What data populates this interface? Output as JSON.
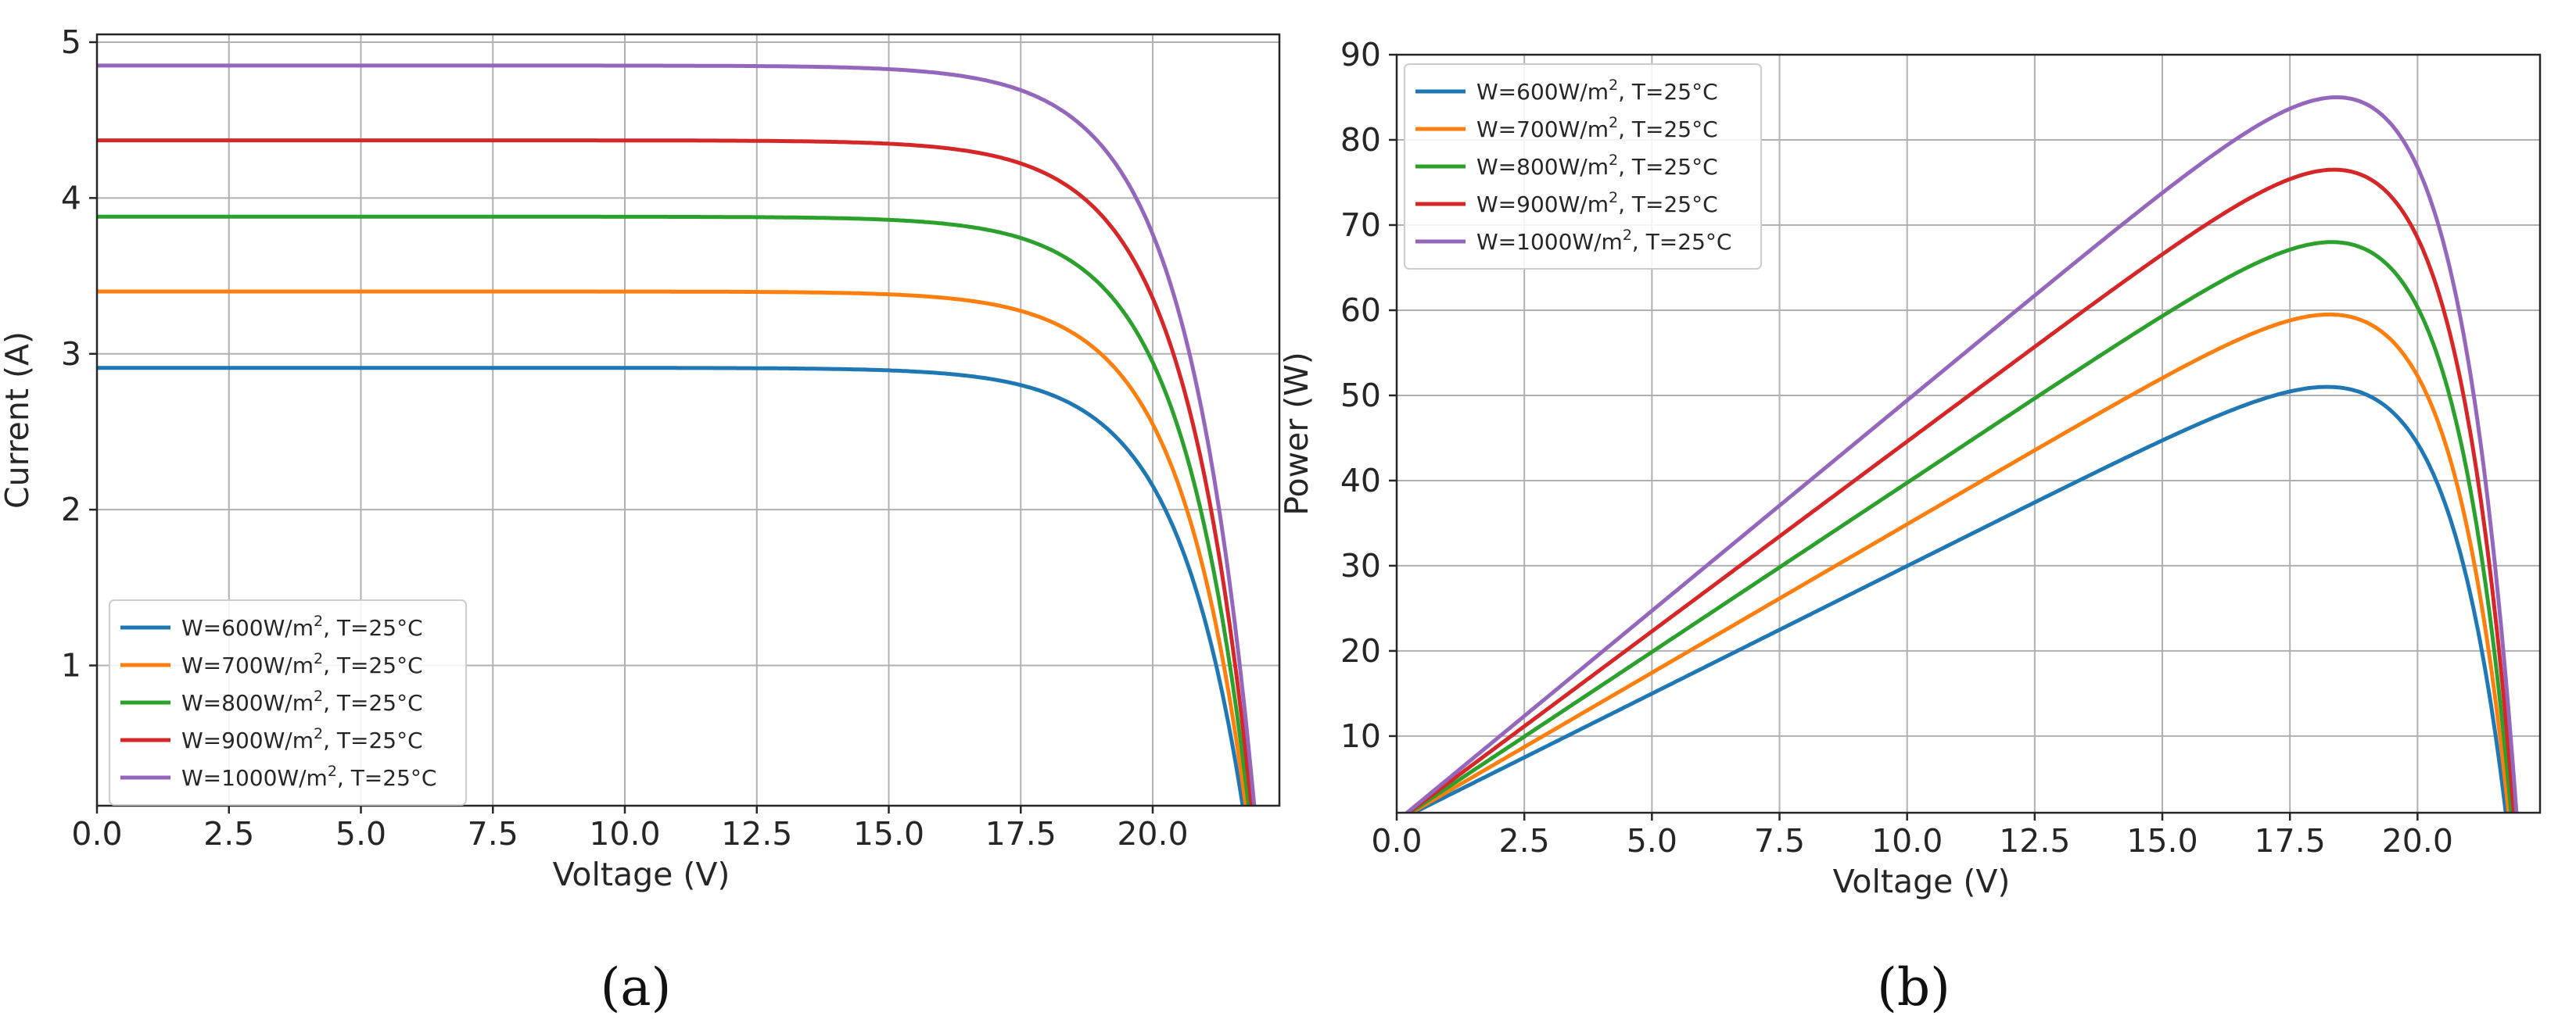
{
  "legend": {
    "unit_prefix": "W=",
    "unit_w": "W/m",
    "unit_sup": "2",
    "temp_suffix": ", T=25°C"
  },
  "chart_data": [
    {
      "type": "line",
      "panel_label": "(a)",
      "title": "",
      "xlabel": "Voltage (V)",
      "ylabel": "Current (A)",
      "xlim": [
        0,
        22.4
      ],
      "ylim": [
        0.1,
        5.05
      ],
      "grid": true,
      "legend_position": "lower-left",
      "xticks": [
        "0.0",
        "2.5",
        "5.0",
        "7.5",
        "10.0",
        "12.5",
        "15.0",
        "17.5",
        "20.0"
      ],
      "yticks": [
        "1",
        "2",
        "3",
        "4",
        "5"
      ],
      "series": [
        {
          "name": "600",
          "color": "#1f77b4",
          "isc": 2.91,
          "voc": 21.75
        },
        {
          "name": "700",
          "color": "#ff7f0e",
          "isc": 3.4,
          "voc": 21.8
        },
        {
          "name": "800",
          "color": "#2ca02c",
          "isc": 3.88,
          "voc": 21.85
        },
        {
          "name": "900",
          "color": "#d62728",
          "isc": 4.37,
          "voc": 21.9
        },
        {
          "name": "1000",
          "color": "#9467bd",
          "isc": 4.85,
          "voc": 21.95
        }
      ]
    },
    {
      "type": "line",
      "panel_label": "(b)",
      "title": "",
      "xlabel": "Voltage (V)",
      "ylabel": "Power (W)",
      "xlim": [
        0,
        22.4
      ],
      "ylim": [
        1,
        90
      ],
      "grid": true,
      "legend_position": "upper-left",
      "xticks": [
        "0.0",
        "2.5",
        "5.0",
        "7.5",
        "10.0",
        "12.5",
        "15.0",
        "17.5",
        "20.0"
      ],
      "yticks": [
        "10",
        "20",
        "30",
        "40",
        "50",
        "60",
        "70",
        "80",
        "90"
      ],
      "series": [
        {
          "name": "600",
          "color": "#1f77b4",
          "isc": 2.91,
          "voc": 21.75,
          "pmax": 51
        },
        {
          "name": "700",
          "color": "#ff7f0e",
          "isc": 3.4,
          "voc": 21.8,
          "pmax": 59.5
        },
        {
          "name": "800",
          "color": "#2ca02c",
          "isc": 3.88,
          "voc": 21.85,
          "pmax": 68
        },
        {
          "name": "900",
          "color": "#d62728",
          "isc": 4.37,
          "voc": 21.9,
          "pmax": 76.5
        },
        {
          "name": "1000",
          "color": "#9467bd",
          "isc": 4.85,
          "voc": 21.95,
          "pmax": 85
        }
      ]
    }
  ]
}
